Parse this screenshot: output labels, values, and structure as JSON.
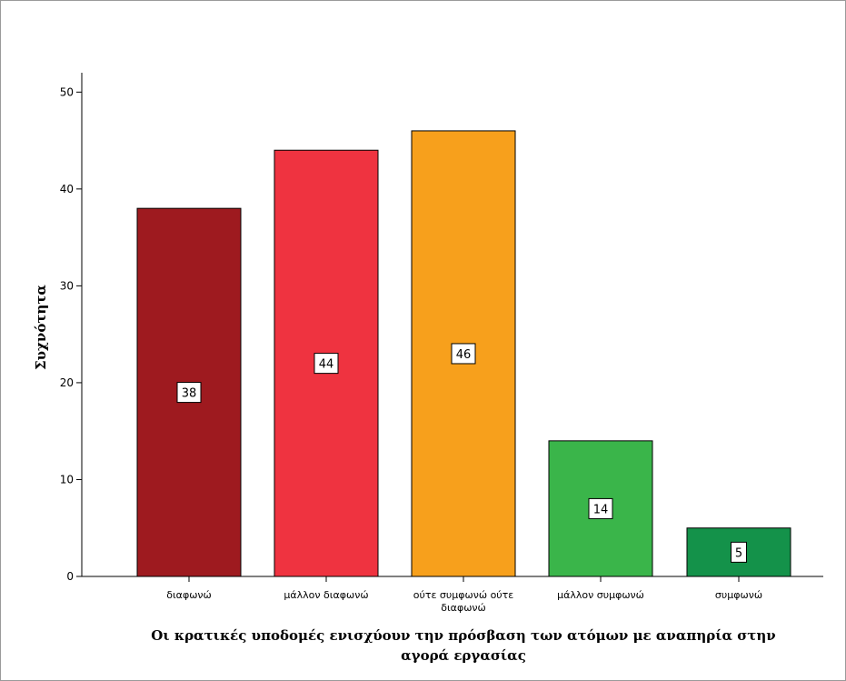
{
  "chart_data": {
    "type": "bar",
    "categories": [
      [
        "διαφωνώ"
      ],
      [
        "μάλλον διαφωνώ"
      ],
      [
        "ούτε συμφωνώ ούτε",
        "διαφωνώ"
      ],
      [
        "μάλλον συμφωνώ"
      ],
      [
        "συμφωνώ"
      ]
    ],
    "values": [
      38,
      44,
      46,
      14,
      5
    ],
    "data_labels": [
      "38",
      "44",
      "46",
      "14",
      "5"
    ],
    "colors": [
      "#9e1a1f",
      "#ef3340",
      "#f7a01c",
      "#3ab54a",
      "#14924a"
    ],
    "ylabel": "Συχνότητα",
    "xlabel": [
      "Οι κρατικές υποδομές ενισχύουν την πρόσβαση των ατόμων με αναπηρία στην",
      "αγορά εργασίας"
    ],
    "ylim": [
      0,
      52
    ],
    "yticks": [
      "0",
      "10",
      "20",
      "30",
      "40",
      "50"
    ],
    "grid": false,
    "legend": "none"
  }
}
